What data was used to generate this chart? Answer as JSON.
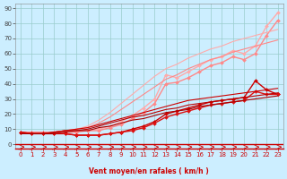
{
  "xlabel": "Vent moyen/en rafales ( km/h )",
  "background_color": "#cceeff",
  "grid_color": "#99cccc",
  "x_ticks": [
    0,
    1,
    2,
    3,
    4,
    5,
    6,
    7,
    8,
    9,
    10,
    11,
    12,
    13,
    14,
    15,
    16,
    17,
    18,
    19,
    20,
    21,
    22,
    23
  ],
  "y_ticks": [
    0,
    10,
    20,
    30,
    40,
    50,
    60,
    70,
    80,
    90
  ],
  "ylim": [
    -3,
    93
  ],
  "xlim": [
    -0.5,
    23.5
  ],
  "series": [
    {
      "color": "#ffaaaa",
      "linewidth": 1.0,
      "marker": "D",
      "markersize": 2.0,
      "values": [
        8,
        8,
        8,
        8,
        8,
        9,
        9,
        10,
        12,
        15,
        19,
        24,
        30,
        46,
        44,
        48,
        52,
        56,
        58,
        62,
        60,
        65,
        78,
        87
      ]
    },
    {
      "color": "#ff8888",
      "linewidth": 1.0,
      "marker": "D",
      "markersize": 2.0,
      "values": [
        8,
        8,
        8,
        8,
        8,
        8,
        9,
        9,
        11,
        13,
        17,
        21,
        27,
        40,
        41,
        44,
        48,
        52,
        54,
        58,
        56,
        60,
        72,
        82
      ]
    },
    {
      "color": "#ffaaaa",
      "linewidth": 0.8,
      "marker": null,
      "markersize": 0,
      "values": [
        7,
        7,
        7,
        8,
        9,
        10,
        12,
        16,
        21,
        27,
        33,
        39,
        45,
        50,
        53,
        57,
        60,
        63,
        65,
        68,
        70,
        72,
        74,
        76
      ]
    },
    {
      "color": "#ff8888",
      "linewidth": 0.8,
      "marker": null,
      "markersize": 0,
      "values": [
        7,
        7,
        7,
        8,
        9,
        10,
        11,
        14,
        18,
        23,
        28,
        33,
        38,
        43,
        46,
        50,
        53,
        56,
        58,
        61,
        63,
        65,
        67,
        69
      ]
    },
    {
      "color": "#cc0000",
      "linewidth": 1.0,
      "marker": "D",
      "markersize": 2.0,
      "values": [
        8,
        7,
        7,
        7,
        7,
        6,
        6,
        6,
        7,
        8,
        10,
        12,
        15,
        20,
        22,
        24,
        26,
        28,
        29,
        30,
        31,
        42,
        36,
        33
      ]
    },
    {
      "color": "#dd1111",
      "linewidth": 1.0,
      "marker": "D",
      "markersize": 2.0,
      "values": [
        8,
        7,
        7,
        7,
        7,
        6,
        6,
        6,
        7,
        8,
        9,
        11,
        14,
        18,
        20,
        22,
        24,
        26,
        27,
        28,
        29,
        35,
        33,
        33
      ]
    },
    {
      "color": "#cc0000",
      "linewidth": 0.8,
      "marker": null,
      "markersize": 0,
      "values": [
        7,
        7,
        7,
        8,
        9,
        10,
        11,
        13,
        15,
        17,
        19,
        21,
        23,
        25,
        27,
        29,
        30,
        31,
        32,
        33,
        34,
        35,
        36,
        37
      ]
    },
    {
      "color": "#bb0000",
      "linewidth": 0.8,
      "marker": null,
      "markersize": 0,
      "values": [
        7,
        7,
        7,
        8,
        9,
        9,
        10,
        12,
        14,
        16,
        18,
        19,
        21,
        23,
        24,
        26,
        27,
        28,
        29,
        30,
        31,
        32,
        33,
        34
      ]
    },
    {
      "color": "#aa0000",
      "linewidth": 0.8,
      "marker": null,
      "markersize": 0,
      "values": [
        7,
        7,
        7,
        7,
        8,
        9,
        9,
        11,
        12,
        14,
        16,
        17,
        19,
        21,
        22,
        23,
        25,
        26,
        27,
        28,
        29,
        30,
        31,
        32
      ]
    }
  ],
  "arrow_color": "#cc0000",
  "tick_color_x": "#cc0000",
  "tick_color_y": "#444444",
  "xlabel_color": "#cc0000",
  "xlabel_fontsize": 5.5,
  "tick_fontsize": 5
}
